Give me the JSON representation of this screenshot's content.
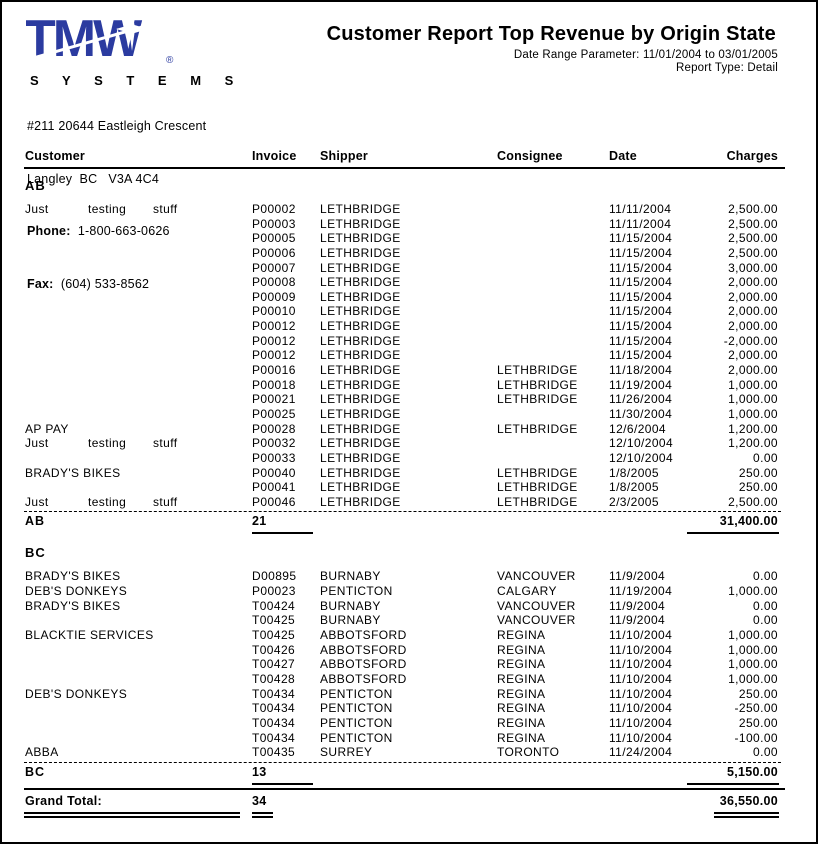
{
  "page": {
    "logo": {
      "brand": "TMW",
      "sub": "S Y S T E M S",
      "registered": "®"
    },
    "company": {
      "address_line1": "#211 20644 Eastleigh Crescent",
      "address_line2": "Langley  BC   V3A 4C4",
      "phone_label": "Phone:",
      "phone": "  1-800-663-0626",
      "fax_label": "Fax:",
      "fax": "  (604) 533-8562"
    },
    "header": {
      "title": "Customer Report Top Revenue by Origin State",
      "date_range": "Date Range Parameter: 11/01/2004 to 03/01/2005",
      "report_type": "Report Type: Detail"
    },
    "colors": {
      "logo_blue": "#2b3ba0",
      "text": "#000000",
      "page_bg": "#ffffff"
    }
  },
  "table": {
    "columns": [
      "Customer",
      "Invoice",
      "Shipper",
      "Consignee",
      "Date",
      "Charges"
    ],
    "sections": [
      {
        "group": "AB",
        "rows": [
          {
            "customer": [
              "Just",
              "testing",
              "stuff"
            ],
            "invoice": "P00002",
            "shipper": "LETHBRIDGE",
            "consignee": "",
            "date": "11/11/2004",
            "charges": "2,500.00"
          },
          {
            "customer": "",
            "invoice": "P00003",
            "shipper": "LETHBRIDGE",
            "consignee": "",
            "date": "11/11/2004",
            "charges": "2,500.00"
          },
          {
            "customer": "",
            "invoice": "P00005",
            "shipper": "LETHBRIDGE",
            "consignee": "",
            "date": "11/15/2004",
            "charges": "2,500.00"
          },
          {
            "customer": "",
            "invoice": "P00006",
            "shipper": "LETHBRIDGE",
            "consignee": "",
            "date": "11/15/2004",
            "charges": "2,500.00"
          },
          {
            "customer": "",
            "invoice": "P00007",
            "shipper": "LETHBRIDGE",
            "consignee": "",
            "date": "11/15/2004",
            "charges": "3,000.00"
          },
          {
            "customer": "",
            "invoice": "P00008",
            "shipper": "LETHBRIDGE",
            "consignee": "",
            "date": "11/15/2004",
            "charges": "2,000.00"
          },
          {
            "customer": "",
            "invoice": "P00009",
            "shipper": "LETHBRIDGE",
            "consignee": "",
            "date": "11/15/2004",
            "charges": "2,000.00"
          },
          {
            "customer": "",
            "invoice": "P00010",
            "shipper": "LETHBRIDGE",
            "consignee": "",
            "date": "11/15/2004",
            "charges": "2,000.00"
          },
          {
            "customer": "",
            "invoice": "P00012",
            "shipper": "LETHBRIDGE",
            "consignee": "",
            "date": "11/15/2004",
            "charges": "2,000.00"
          },
          {
            "customer": "",
            "invoice": "P00012",
            "shipper": "LETHBRIDGE",
            "consignee": "",
            "date": "11/15/2004",
            "charges": "-2,000.00"
          },
          {
            "customer": "",
            "invoice": "P00012",
            "shipper": "LETHBRIDGE",
            "consignee": "",
            "date": "11/15/2004",
            "charges": "2,000.00"
          },
          {
            "customer": "",
            "invoice": "P00016",
            "shipper": "LETHBRIDGE",
            "consignee": "LETHBRIDGE",
            "date": "11/18/2004",
            "charges": "2,000.00"
          },
          {
            "customer": "",
            "invoice": "P00018",
            "shipper": "LETHBRIDGE",
            "consignee": "LETHBRIDGE",
            "date": "11/19/2004",
            "charges": "1,000.00"
          },
          {
            "customer": "",
            "invoice": "P00021",
            "shipper": "LETHBRIDGE",
            "consignee": "LETHBRIDGE",
            "date": "11/26/2004",
            "charges": "1,000.00"
          },
          {
            "customer": "",
            "invoice": "P00025",
            "shipper": "LETHBRIDGE",
            "consignee": "",
            "date": "11/30/2004",
            "charges": "1,000.00"
          },
          {
            "customer": "AP PAY",
            "invoice": "P00028",
            "shipper": "LETHBRIDGE",
            "consignee": "LETHBRIDGE",
            "date": "12/6/2004",
            "charges": "1,200.00"
          },
          {
            "customer": [
              "Just",
              "testing",
              "stuff"
            ],
            "invoice": "P00032",
            "shipper": "LETHBRIDGE",
            "consignee": "",
            "date": "12/10/2004",
            "charges": "1,200.00"
          },
          {
            "customer": "",
            "invoice": "P00033",
            "shipper": "LETHBRIDGE",
            "consignee": "",
            "date": "12/10/2004",
            "charges": "0.00"
          },
          {
            "customer": "BRADY'S BIKES",
            "invoice": "P00040",
            "shipper": "LETHBRIDGE",
            "consignee": "LETHBRIDGE",
            "date": "1/8/2005",
            "charges": "250.00"
          },
          {
            "customer": "",
            "invoice": "P00041",
            "shipper": "LETHBRIDGE",
            "consignee": "LETHBRIDGE",
            "date": "1/8/2005",
            "charges": "250.00"
          },
          {
            "customer": [
              "Just",
              "testing",
              "stuff"
            ],
            "invoice": "P00046",
            "shipper": "LETHBRIDGE",
            "consignee": "LETHBRIDGE",
            "date": "2/3/2005",
            "charges": "2,500.00"
          }
        ],
        "footer": {
          "label": "AB",
          "count": "21",
          "total": "31,400.00"
        }
      },
      {
        "group": "BC",
        "rows": [
          {
            "customer": "BRADY'S BIKES",
            "invoice": "D00895",
            "shipper": "BURNABY",
            "consignee": "VANCOUVER",
            "date": "11/9/2004",
            "charges": "0.00"
          },
          {
            "customer": "DEB'S DONKEYS",
            "invoice": "P00023",
            "shipper": "PENTICTON",
            "consignee": "CALGARY",
            "date": "11/19/2004",
            "charges": "1,000.00"
          },
          {
            "customer": "BRADY'S BIKES",
            "invoice": "T00424",
            "shipper": "BURNABY",
            "consignee": "VANCOUVER",
            "date": "11/9/2004",
            "charges": "0.00"
          },
          {
            "customer": "",
            "invoice": "T00425",
            "shipper": "BURNABY",
            "consignee": "VANCOUVER",
            "date": "11/9/2004",
            "charges": "0.00"
          },
          {
            "customer": "BLACKTIE SERVICES",
            "invoice": "T00425",
            "shipper": "ABBOTSFORD",
            "consignee": "REGINA",
            "date": "11/10/2004",
            "charges": "1,000.00"
          },
          {
            "customer": "",
            "invoice": "T00426",
            "shipper": "ABBOTSFORD",
            "consignee": "REGINA",
            "date": "11/10/2004",
            "charges": "1,000.00"
          },
          {
            "customer": "",
            "invoice": "T00427",
            "shipper": "ABBOTSFORD",
            "consignee": "REGINA",
            "date": "11/10/2004",
            "charges": "1,000.00"
          },
          {
            "customer": "",
            "invoice": "T00428",
            "shipper": "ABBOTSFORD",
            "consignee": "REGINA",
            "date": "11/10/2004",
            "charges": "1,000.00"
          },
          {
            "customer": "DEB'S DONKEYS",
            "invoice": "T00434",
            "shipper": "PENTICTON",
            "consignee": "REGINA",
            "date": "11/10/2004",
            "charges": "250.00"
          },
          {
            "customer": "",
            "invoice": "T00434",
            "shipper": "PENTICTON",
            "consignee": "REGINA",
            "date": "11/10/2004",
            "charges": "-250.00"
          },
          {
            "customer": "",
            "invoice": "T00434",
            "shipper": "PENTICTON",
            "consignee": "REGINA",
            "date": "11/10/2004",
            "charges": "250.00"
          },
          {
            "customer": "",
            "invoice": "T00434",
            "shipper": "PENTICTON",
            "consignee": "REGINA",
            "date": "11/10/2004",
            "charges": "-100.00"
          },
          {
            "customer": "ABBA",
            "invoice": "T00435",
            "shipper": "SURREY",
            "consignee": "TORONTO",
            "date": "11/24/2004",
            "charges": "0.00"
          }
        ],
        "footer": {
          "label": "BC",
          "count": "13",
          "total": "5,150.00"
        }
      }
    ],
    "grand_total": {
      "label": "Grand Total:",
      "count": "34",
      "total": "36,550.00"
    }
  }
}
